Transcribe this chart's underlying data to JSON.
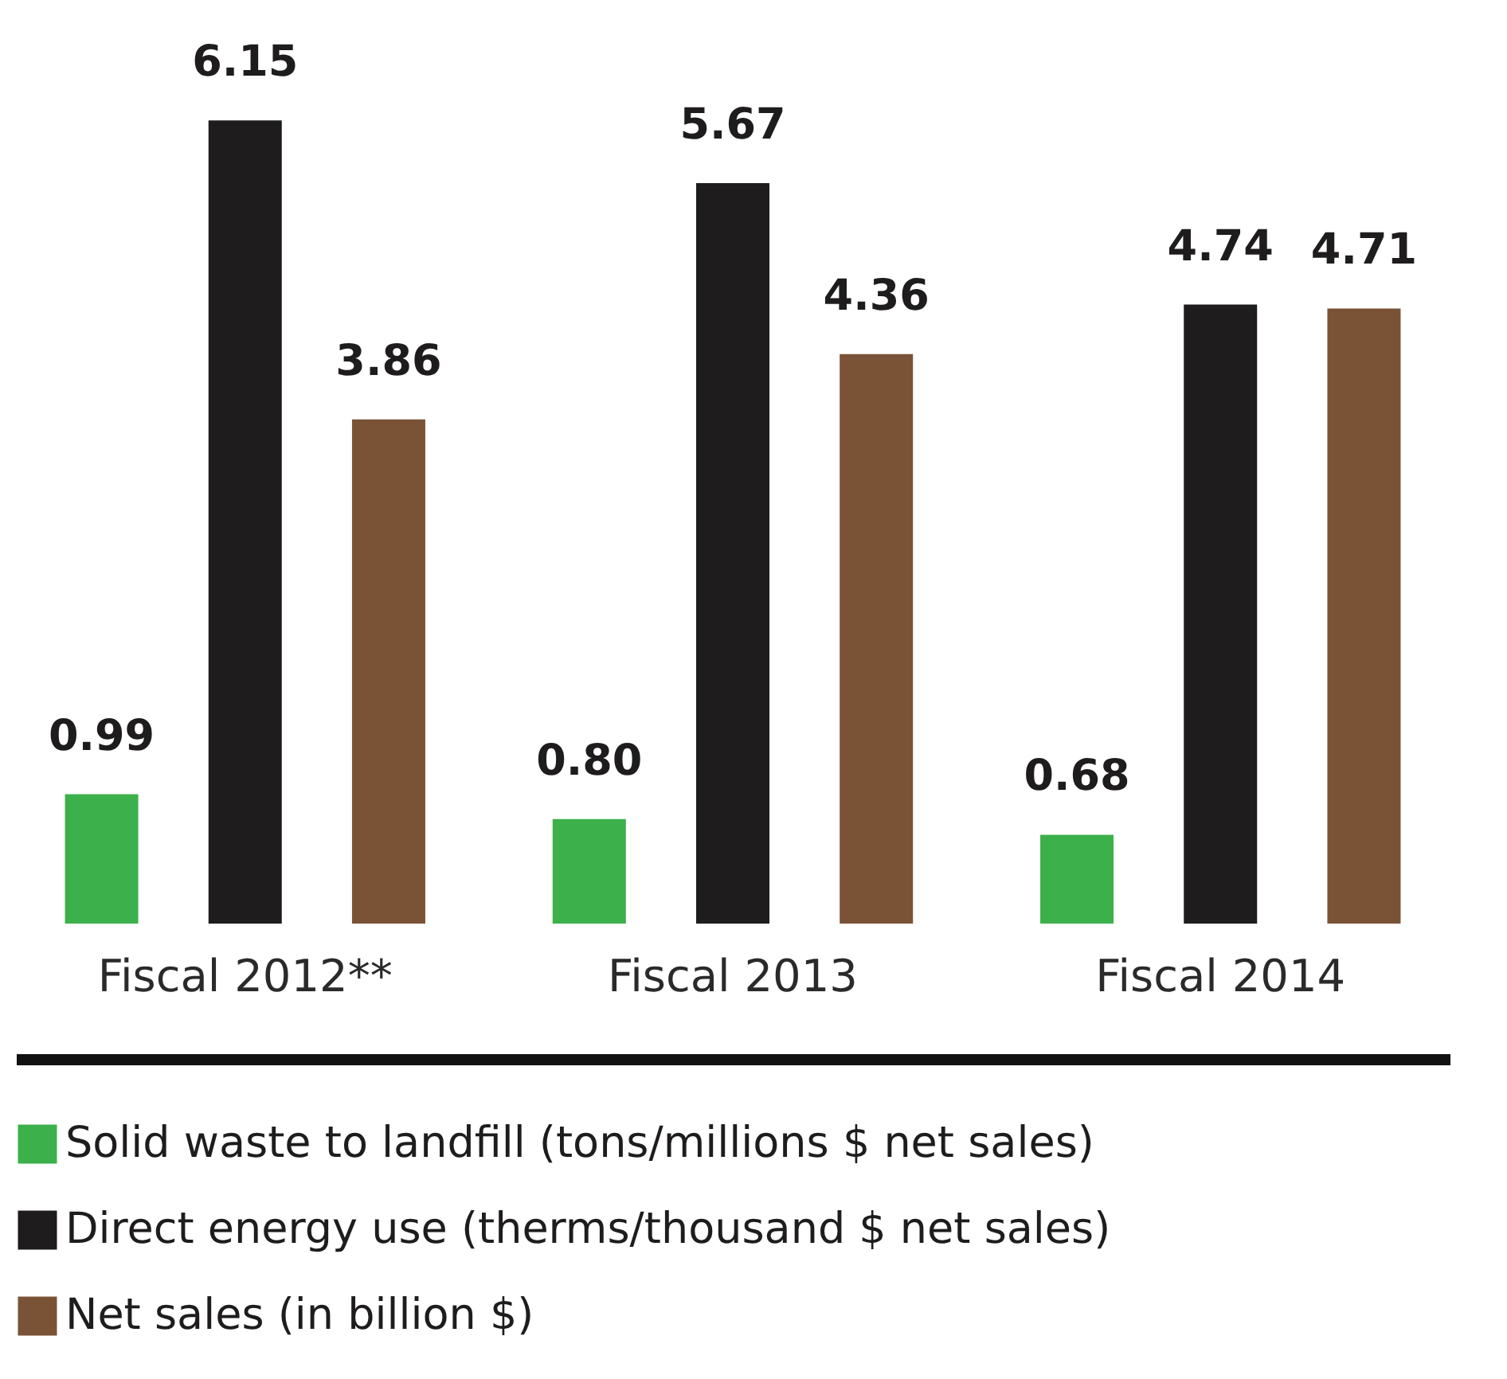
{
  "chart_data": {
    "type": "bar",
    "categories": [
      "Fiscal 2012**",
      "Fiscal 2013",
      "Fiscal 2014"
    ],
    "series": [
      {
        "name": "Solid waste to landfill (tons/millions $ net sales)",
        "color": "#3cb04a",
        "values": [
          0.99,
          0.8,
          0.68
        ],
        "value_labels": [
          "0.99",
          "0.80",
          "0.68"
        ]
      },
      {
        "name": "Direct energy use (therms/thousand $ net sales)",
        "color": "#1e1c1d",
        "values": [
          6.15,
          5.67,
          4.74
        ],
        "value_labels": [
          "6.15",
          "5.67",
          "4.74"
        ]
      },
      {
        "name": "Net sales (in billion $)",
        "color": "#7a5236",
        "values": [
          3.86,
          4.36,
          4.71
        ],
        "value_labels": [
          "3.86",
          "4.36",
          "4.71"
        ]
      }
    ],
    "legend": "bottom",
    "grid": false
  }
}
